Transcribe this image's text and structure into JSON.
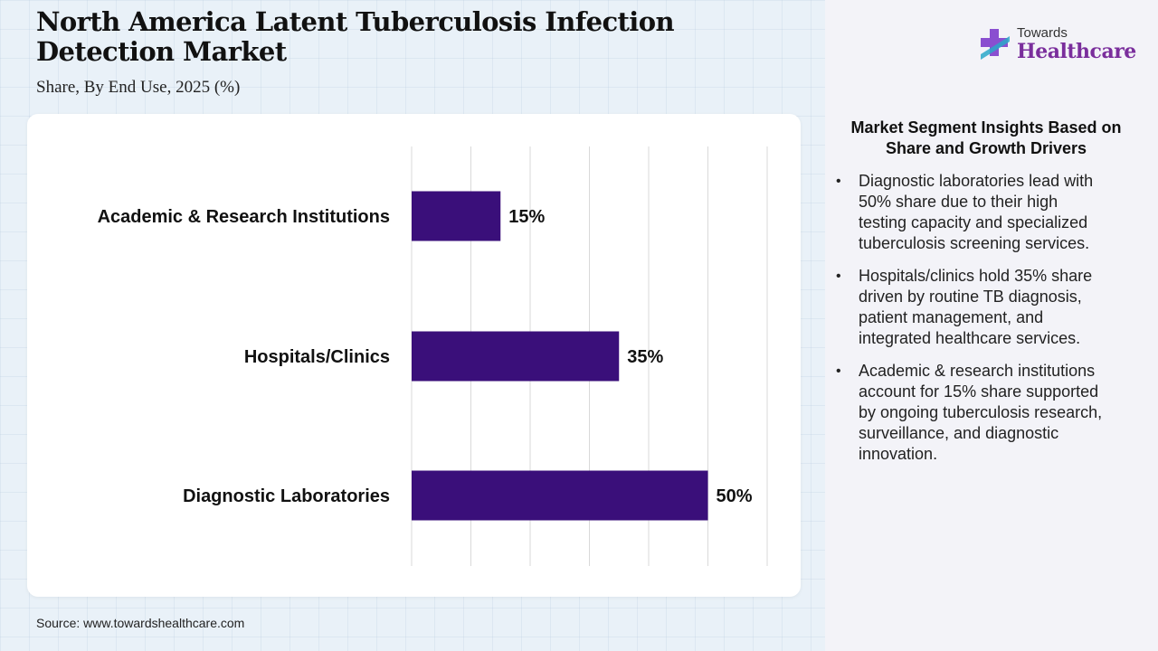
{
  "header": {
    "title": "North America Latent Tuberculosis Infection Detection Market",
    "subtitle": "Share, By End Use, 2025 (%)"
  },
  "source": "Source: www.towardshealthcare.com",
  "logo": {
    "top": "Towards",
    "bottom": "Healthcare"
  },
  "insights": {
    "title": "Market Segment Insights Based on Share and Growth Drivers",
    "items": [
      "Diagnostic laboratories lead with 50% share due to their high testing capacity and specialized tuberculosis screening services.",
      "Hospitals/clinics hold 35% share driven by routine TB diagnosis, patient management, and integrated healthcare services.",
      "Academic & research institutions account for 15% share supported by ongoing tuberculosis research, surveillance, and diagnostic innovation."
    ]
  },
  "colors": {
    "bar": "#3a0f7a",
    "grid": "#d9d9d9",
    "logo_accent": "#7a2e9c",
    "logo_cross": "#8a4fd0"
  },
  "chart_data": {
    "type": "bar",
    "orientation": "horizontal",
    "title": "North America Latent Tuberculosis Infection Detection Market",
    "subtitle": "Share, By End Use, 2025 (%)",
    "categories": [
      "Academic & Research Institutions",
      "Hospitals/Clinics",
      "Diagnostic Laboratories"
    ],
    "values": [
      15,
      35,
      50
    ],
    "value_labels": [
      "15%",
      "35%",
      "50%"
    ],
    "xlim": [
      0,
      60
    ],
    "grid": true,
    "legend": "none"
  }
}
